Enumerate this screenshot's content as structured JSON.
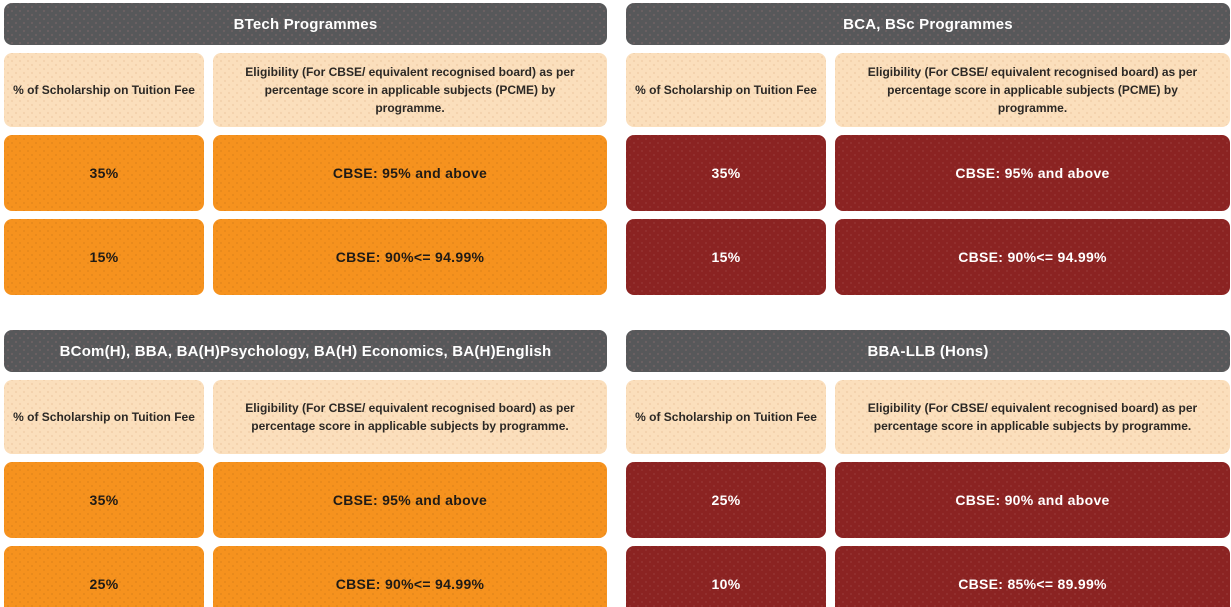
{
  "palette": {
    "gray": "#57585A",
    "peach": "#FBDFBC",
    "orange": "#F6921E",
    "maroon": "#8B2322"
  },
  "sections": [
    {
      "title": "BTech Programmes",
      "theme": "orange",
      "col1_header": "% of Scholarship on Tuition Fee",
      "col2_header": "Eligibility (For CBSE/ equivalent recognised board) as per percentage score in applicable subjects (PCME) by programme.",
      "rows": [
        {
          "scholarship": "35%",
          "eligibility": "CBSE: 95% and above"
        },
        {
          "scholarship": "15%",
          "eligibility": "CBSE: 90%<= 94.99%"
        }
      ]
    },
    {
      "title": "BCA, BSc Programmes",
      "theme": "maroon",
      "col1_header": "% of Scholarship on Tuition Fee",
      "col2_header": "Eligibility (For CBSE/ equivalent recognised board) as per percentage score in applicable subjects (PCME) by programme.",
      "rows": [
        {
          "scholarship": "35%",
          "eligibility": "CBSE: 95% and above"
        },
        {
          "scholarship": "15%",
          "eligibility": "CBSE: 90%<= 94.99%"
        }
      ]
    },
    {
      "title": "BCom(H), BBA, BA(H)Psychology, BA(H) Economics, BA(H)English",
      "theme": "orange",
      "col1_header": "% of Scholarship on Tuition Fee",
      "col2_header": "Eligibility (For CBSE/ equivalent recognised board) as per percentage score in applicable subjects by programme.",
      "rows": [
        {
          "scholarship": "35%",
          "eligibility": "CBSE: 95% and above"
        },
        {
          "scholarship": "25%",
          "eligibility": "CBSE: 90%<= 94.99%"
        }
      ]
    },
    {
      "title": "BBA-LLB (Hons)",
      "theme": "maroon",
      "col1_header": "% of Scholarship on Tuition Fee",
      "col2_header": "Eligibility (For CBSE/ equivalent recognised board) as per percentage score in applicable subjects by programme.",
      "rows": [
        {
          "scholarship": "25%",
          "eligibility": "CBSE: 90% and above"
        },
        {
          "scholarship": "10%",
          "eligibility": "CBSE: 85%<= 89.99%"
        }
      ]
    }
  ]
}
